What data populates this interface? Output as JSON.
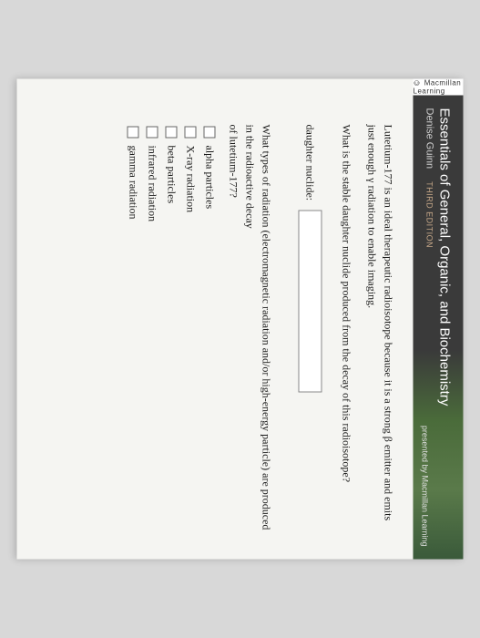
{
  "copyright": "© Macmillan Learning",
  "header": {
    "title": "Essentials of General, Organic, and Biochemistry",
    "author": "Denise Guinn",
    "edition": "THIRD EDITION",
    "presented_by": "presented by Macmillan Learning"
  },
  "content": {
    "intro": "Lutetium-177 is an ideal therapeutic radioisotope because it is a strong β emitter and emits just enough γ radiation to enable imaging.",
    "question1": "What is the stable daughter nuclide produced from the decay of this radioisotope?",
    "input_label": "daughter nuclide:",
    "input_value": "",
    "question2_line1": "What types of radiation (electromagnetic radiation and/or high-energy particle) are produced in the radioactive decay",
    "question2_line2": "of lutetium-177?",
    "options": [
      {
        "label": "alpha particles"
      },
      {
        "label": "X-ray radiation"
      },
      {
        "label": "beta particles"
      },
      {
        "label": "infrared radiation"
      },
      {
        "label": "gamma radiation"
      }
    ]
  },
  "colors": {
    "page_bg": "#f5f5f2",
    "header_dark": "#3a3a3a",
    "header_green": "#4a6b3a",
    "edition_tan": "#c5a788",
    "text": "#1a1a1a"
  }
}
